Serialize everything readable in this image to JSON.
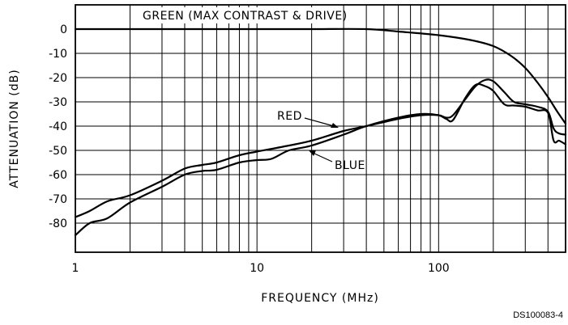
{
  "chart_data": {
    "type": "line",
    "xlabel": "FREQUENCY (MHz)",
    "ylabel": "ATTENUATION (dB)",
    "xscale": "log",
    "xlim": [
      1,
      500
    ],
    "ylim": [
      -92,
      10
    ],
    "xticks": [
      1,
      10,
      100
    ],
    "yticks": [
      0,
      -10,
      -20,
      -30,
      -40,
      -50,
      -60,
      -70,
      -80
    ],
    "grid": true,
    "series": [
      {
        "name": "GREEN (MAX CONTRAST & DRIVE)",
        "color": "#000000",
        "x": [
          1,
          2,
          5,
          10,
          20,
          40,
          60,
          100,
          150,
          200,
          250,
          300,
          350,
          400,
          450,
          500
        ],
        "y": [
          0,
          0,
          0,
          0,
          0,
          0,
          -1,
          -2.5,
          -4.5,
          -7,
          -11,
          -16,
          -22,
          -28,
          -34,
          -39
        ]
      },
      {
        "name": "RED",
        "color": "#000000",
        "x": [
          1,
          1.2,
          1.5,
          2,
          3,
          4,
          5,
          6,
          8,
          10,
          15,
          20,
          30,
          40,
          60,
          80,
          100,
          110,
          120,
          140,
          160,
          180,
          200,
          230,
          260,
          300,
          350,
          400,
          430,
          460,
          500
        ],
        "y": [
          -77.5,
          -75,
          -71,
          -68.5,
          -62.5,
          -57.5,
          -56,
          -55,
          -52,
          -50.5,
          -48,
          -46,
          -42,
          -40,
          -37,
          -35.5,
          -35.5,
          -36.5,
          -35.5,
          -29,
          -23.5,
          -21,
          -21.5,
          -26,
          -30,
          -31,
          -32,
          -34,
          -41,
          -43,
          -43.5
        ]
      },
      {
        "name": "BLUE",
        "color": "#000000",
        "x": [
          1,
          1.2,
          1.5,
          2,
          3,
          4,
          5,
          6,
          8,
          10,
          12,
          15,
          20,
          30,
          40,
          60,
          80,
          100,
          110,
          120,
          140,
          160,
          180,
          200,
          230,
          260,
          300,
          350,
          400,
          430,
          460,
          500
        ],
        "y": [
          -85,
          -80,
          -78,
          -71.5,
          -65,
          -60,
          -58.5,
          -58,
          -55,
          -54,
          -53.5,
          -50,
          -48,
          -43.5,
          -40,
          -36.5,
          -35,
          -35.5,
          -37,
          -37.5,
          -28.5,
          -23,
          -23.5,
          -25.5,
          -31,
          -31.5,
          -32,
          -33.5,
          -34.5,
          -46,
          -46,
          -47.5
        ]
      }
    ],
    "annotations": [
      {
        "text": "GREEN (MAX CONTRAST & DRIVE)"
      },
      {
        "text": "RED"
      },
      {
        "text": "BLUE"
      }
    ],
    "footnote": "DS100083-4"
  }
}
